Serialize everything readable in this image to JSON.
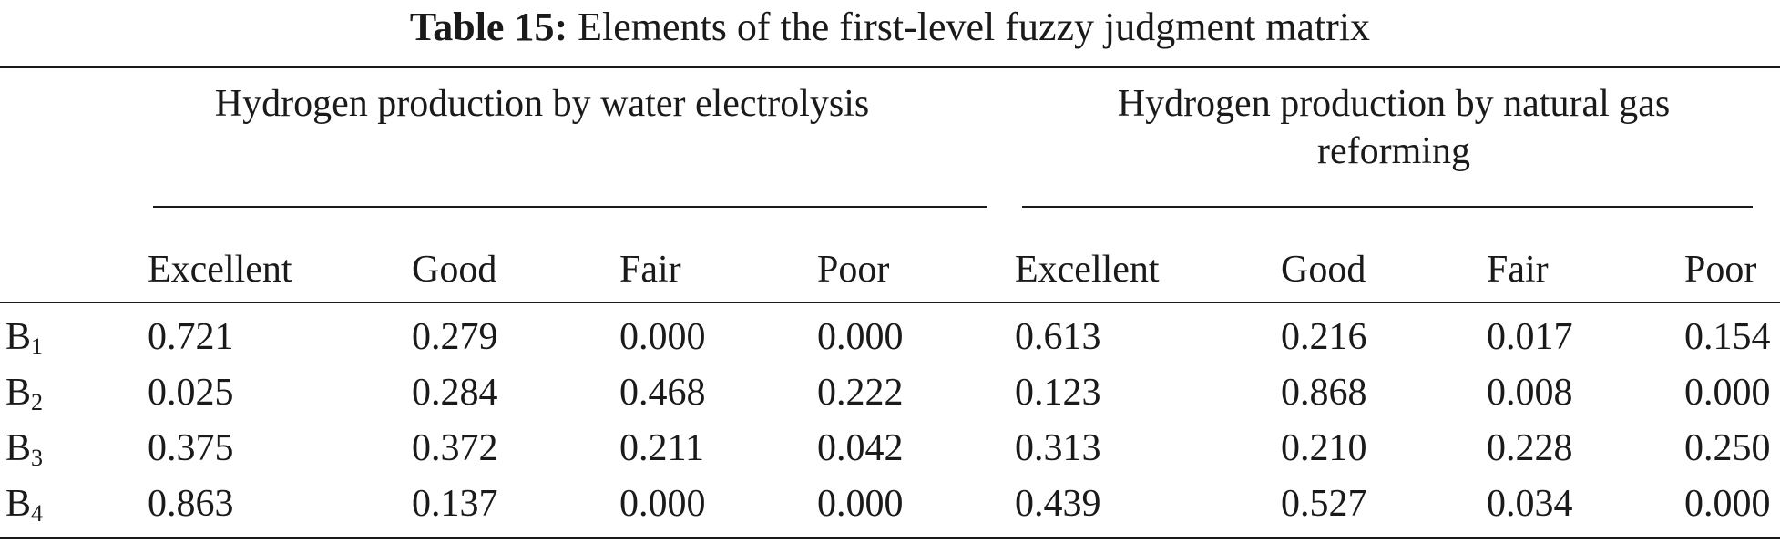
{
  "table": {
    "caption_label": "Table 15:",
    "caption_text": "Elements of the first-level fuzzy judgment matrix",
    "groups": [
      {
        "title": "Hydrogen production by water electrolysis"
      },
      {
        "title": "Hydrogen production by natural gas reforming"
      }
    ],
    "columns": [
      "Excellent",
      "Good",
      "Fair",
      "Poor",
      "Excellent",
      "Good",
      "Fair",
      "Poor"
    ],
    "rows": [
      {
        "label": "B",
        "sub": "1",
        "values": [
          "0.721",
          "0.279",
          "0.000",
          "0.000",
          "0.613",
          "0.216",
          "0.017",
          "0.154"
        ]
      },
      {
        "label": "B",
        "sub": "2",
        "values": [
          "0.025",
          "0.284",
          "0.468",
          "0.222",
          "0.123",
          "0.868",
          "0.008",
          "0.000"
        ]
      },
      {
        "label": "B",
        "sub": "3",
        "values": [
          "0.375",
          "0.372",
          "0.211",
          "0.042",
          "0.313",
          "0.210",
          "0.228",
          "0.250"
        ]
      },
      {
        "label": "B",
        "sub": "4",
        "values": [
          "0.863",
          "0.137",
          "0.000",
          "0.000",
          "0.439",
          "0.527",
          "0.034",
          "0.000"
        ]
      }
    ]
  }
}
